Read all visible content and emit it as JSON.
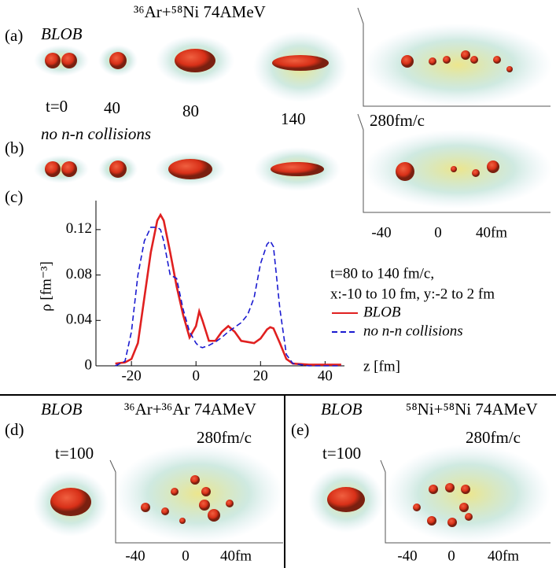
{
  "panels": {
    "a": {
      "label": "(a)",
      "model": "BLOB",
      "reaction": "³⁶Ar+⁵⁸Ni 74AMeV",
      "times": [
        "t=0",
        "40",
        "80",
        "140"
      ],
      "final_time": "280fm/c",
      "axis_ticks": [
        "-40",
        "0",
        "40fm"
      ]
    },
    "b": {
      "label": "(b)",
      "model": "no n-n collisions"
    },
    "c": {
      "label": "(c)"
    },
    "d": {
      "label": "(d)",
      "model": "BLOB",
      "reaction": "³⁶Ar+³⁶Ar 74AMeV",
      "final_time": "280fm/c",
      "time": "t=100",
      "axis_ticks": [
        "-40",
        "0",
        "40fm"
      ]
    },
    "e": {
      "label": "(e)",
      "model": "BLOB",
      "reaction": "⁵⁸Ni+⁵⁸Ni 74AMeV",
      "final_time": "280fm/c",
      "time": "t=100",
      "axis_ticks": [
        "-40",
        "0",
        "40fm"
      ]
    }
  },
  "chart_data": {
    "type": "line",
    "x_label": "z [fm]",
    "y_label": "ρ [fm⁻³]",
    "annotations": [
      "t=80 to 140 fm/c,",
      "x:-10 to 10 fm, y:-2 to 2 fm"
    ],
    "x": [
      -25,
      -22,
      -20,
      -18,
      -16,
      -14,
      -12,
      -11,
      -10,
      -8,
      -6,
      -4,
      -2,
      0,
      1,
      2,
      4,
      6,
      8,
      10,
      12,
      14,
      16,
      18,
      20,
      22,
      23,
      24,
      26,
      28,
      30,
      35,
      40,
      45
    ],
    "series": [
      {
        "name": "BLOB",
        "color": "#e02020",
        "dash": false,
        "values": [
          0.002,
          0.003,
          0.006,
          0.02,
          0.06,
          0.1,
          0.128,
          0.133,
          0.128,
          0.1,
          0.07,
          0.045,
          0.025,
          0.035,
          0.048,
          0.04,
          0.022,
          0.022,
          0.03,
          0.035,
          0.03,
          0.022,
          0.021,
          0.02,
          0.024,
          0.032,
          0.034,
          0.033,
          0.02,
          0.006,
          0.002,
          0.001,
          0.001,
          0.001
        ]
      },
      {
        "name": "no n-n collisions",
        "color": "#1a1ad0",
        "dash": true,
        "values": [
          0,
          0.004,
          0.03,
          0.08,
          0.11,
          0.122,
          0.122,
          0.12,
          0.11,
          0.08,
          0.077,
          0.05,
          0.03,
          0.02,
          0.017,
          0.016,
          0.018,
          0.021,
          0.025,
          0.03,
          0.034,
          0.038,
          0.045,
          0.06,
          0.09,
          0.107,
          0.11,
          0.105,
          0.05,
          0.01,
          0.002,
          0,
          0,
          0
        ]
      }
    ],
    "xlim": [
      -31,
      46
    ],
    "xticks": [
      -20,
      0,
      20,
      40
    ],
    "ylim": [
      0,
      0.14
    ],
    "yticks": [
      0,
      0.04,
      0.08,
      0.12
    ]
  }
}
